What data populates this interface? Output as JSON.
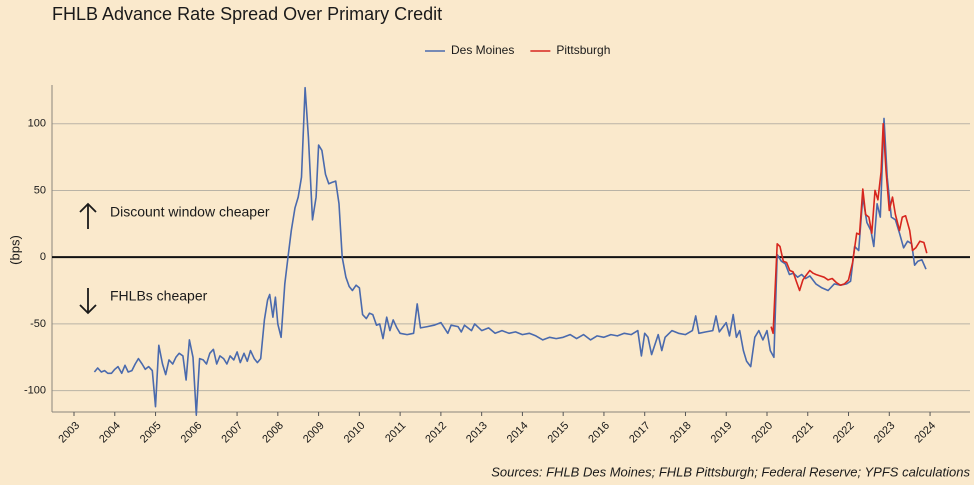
{
  "chart_data": {
    "type": "line",
    "title": "FHLB Advance Rate Spread Over Primary Credit",
    "y_label": "(bps)",
    "annotations": [
      "Discount window cheaper",
      "FHLBs cheaper"
    ],
    "source": "Sources: FHLB Des Moines; FHLB Pittsburgh; Federal Reserve; YPFS calculations",
    "xlim": [
      2002.46,
      2024.98
    ],
    "xticks": [
      2003,
      2004,
      2005,
      2006,
      2007,
      2008,
      2009,
      2010,
      2011,
      2012,
      2013,
      2014,
      2015,
      2016,
      2017,
      2018,
      2019,
      2020,
      2021,
      2022,
      2023,
      2024
    ],
    "ylim": [
      -116,
      129
    ],
    "yticks": [
      -100,
      -50,
      0,
      50,
      100
    ],
    "grid": true,
    "legend": "top",
    "series": [
      {
        "name": "Des Moines",
        "color": "#4a6aad",
        "x": [
          2003.5,
          2003.58,
          2003.67,
          2003.75,
          2003.83,
          2003.92,
          2004.0,
          2004.08,
          2004.17,
          2004.25,
          2004.33,
          2004.42,
          2004.5,
          2004.58,
          2004.67,
          2004.75,
          2004.83,
          2004.92,
          2005.0,
          2005.08,
          2005.17,
          2005.25,
          2005.33,
          2005.42,
          2005.5,
          2005.58,
          2005.67,
          2005.75,
          2005.83,
          2005.92,
          2006.0,
          2006.08,
          2006.17,
          2006.25,
          2006.33,
          2006.42,
          2006.5,
          2006.58,
          2006.67,
          2006.75,
          2006.83,
          2006.92,
          2007.0,
          2007.08,
          2007.17,
          2007.25,
          2007.33,
          2007.42,
          2007.5,
          2007.58,
          2007.67,
          2007.75,
          2007.8,
          2007.88,
          2007.94,
          2008.0,
          2008.08,
          2008.17,
          2008.25,
          2008.33,
          2008.42,
          2008.5,
          2008.58,
          2008.67,
          2008.75,
          2008.85,
          2008.94,
          2009.0,
          2009.08,
          2009.17,
          2009.25,
          2009.33,
          2009.42,
          2009.5,
          2009.58,
          2009.67,
          2009.75,
          2009.83,
          2009.92,
          2010.0,
          2010.08,
          2010.17,
          2010.25,
          2010.33,
          2010.42,
          2010.5,
          2010.58,
          2010.67,
          2010.75,
          2010.83,
          2010.92,
          2011.0,
          2011.17,
          2011.33,
          2011.42,
          2011.5,
          2011.67,
          2011.83,
          2012.0,
          2012.17,
          2012.25,
          2012.42,
          2012.5,
          2012.58,
          2012.75,
          2012.83,
          2013.0,
          2013.17,
          2013.33,
          2013.5,
          2013.67,
          2013.83,
          2014.0,
          2014.17,
          2014.33,
          2014.5,
          2014.67,
          2014.83,
          2015.0,
          2015.17,
          2015.33,
          2015.5,
          2015.67,
          2015.83,
          2016.0,
          2016.17,
          2016.33,
          2016.5,
          2016.67,
          2016.83,
          2016.92,
          2017.0,
          2017.08,
          2017.17,
          2017.33,
          2017.42,
          2017.5,
          2017.67,
          2017.83,
          2018.0,
          2018.17,
          2018.25,
          2018.33,
          2018.5,
          2018.67,
          2018.75,
          2018.83,
          2019.0,
          2019.08,
          2019.17,
          2019.25,
          2019.33,
          2019.42,
          2019.5,
          2019.6,
          2019.7,
          2019.8,
          2019.9,
          2020.0,
          2020.08,
          2020.17,
          2020.25,
          2020.35,
          2020.45,
          2020.55,
          2020.65,
          2020.75,
          2020.85,
          2020.95,
          2021.05,
          2021.2,
          2021.35,
          2021.5,
          2021.65,
          2021.8,
          2021.95,
          2022.05,
          2022.15,
          2022.25,
          2022.35,
          2022.45,
          2022.55,
          2022.62,
          2022.7,
          2022.78,
          2022.87,
          2022.95,
          2023.05,
          2023.15,
          2023.25,
          2023.35,
          2023.45,
          2023.55,
          2023.62,
          2023.7,
          2023.8,
          2023.9
        ],
        "values": [
          -86,
          -83,
          -86,
          -85,
          -87,
          -87,
          -84,
          -82,
          -87,
          -81,
          -86,
          -85,
          -80,
          -76,
          -80,
          -84,
          -82,
          -85,
          -112,
          -66,
          -80,
          -88,
          -77,
          -80,
          -75,
          -72,
          -74,
          -92,
          -62,
          -75,
          -118,
          -76,
          -77,
          -80,
          -72,
          -69,
          -80,
          -74,
          -76,
          -80,
          -74,
          -77,
          -71,
          -79,
          -72,
          -78,
          -70,
          -76,
          -79,
          -76,
          -47,
          -32,
          -28,
          -45,
          -30,
          -50,
          -60,
          -20,
          0,
          20,
          37,
          45,
          60,
          127,
          90,
          28,
          45,
          84,
          80,
          62,
          55,
          56,
          57,
          40,
          0,
          -15,
          -22,
          -25,
          -21,
          -23,
          -43,
          -46,
          -42,
          -43,
          -51,
          -50,
          -61,
          -45,
          -55,
          -47,
          -53,
          -57,
          -58,
          -57,
          -35,
          -53,
          -52,
          -51,
          -49,
          -57,
          -51,
          -52,
          -56,
          -51,
          -55,
          -50,
          -55,
          -53,
          -57,
          -55,
          -57,
          -56,
          -58,
          -57,
          -59,
          -62,
          -60,
          -61,
          -60,
          -58,
          -61,
          -58,
          -62,
          -59,
          -60,
          -58,
          -59,
          -57,
          -58,
          -55,
          -74,
          -57,
          -60,
          -73,
          -58,
          -70,
          -60,
          -55,
          -57,
          -58,
          -55,
          -44,
          -57,
          -56,
          -55,
          -44,
          -56,
          -49,
          -59,
          -43,
          -60,
          -55,
          -70,
          -78,
          -82,
          -60,
          -55,
          -62,
          -55,
          -70,
          -75,
          2,
          -3,
          -5,
          -13,
          -12,
          -15,
          -13,
          -16,
          -14,
          -20,
          -23,
          -25,
          -20,
          -21,
          -20,
          -18,
          8,
          5,
          45,
          26,
          20,
          8,
          40,
          30,
          104,
          60,
          30,
          28,
          18,
          7,
          12,
          10,
          -6,
          -3,
          -2,
          -9
        ]
      },
      {
        "name": "Pittsburgh",
        "color": "#d7261e",
        "x": [
          2020.1,
          2020.15,
          2020.25,
          2020.32,
          2020.4,
          2020.48,
          2020.56,
          2020.64,
          2020.72,
          2020.8,
          2020.88,
          2020.95,
          2021.05,
          2021.13,
          2021.2,
          2021.3,
          2021.4,
          2021.5,
          2021.6,
          2021.7,
          2021.8,
          2021.9,
          2022.0,
          2022.1,
          2022.2,
          2022.27,
          2022.35,
          2022.42,
          2022.5,
          2022.57,
          2022.65,
          2022.72,
          2022.8,
          2022.85,
          2022.92,
          2023.0,
          2023.08,
          2023.15,
          2023.25,
          2023.32,
          2023.4,
          2023.5,
          2023.57,
          2023.65,
          2023.75,
          2023.85,
          2023.92
        ],
        "values": [
          -52,
          -57,
          10,
          8,
          -3,
          -4,
          -10,
          -11,
          -18,
          -25,
          -17,
          -14,
          -10,
          -12,
          -13,
          -14,
          -15,
          -17,
          -16,
          -19,
          -21,
          -20,
          -17,
          -4,
          18,
          17,
          51,
          32,
          30,
          18,
          50,
          43,
          64,
          100,
          65,
          35,
          45,
          32,
          20,
          30,
          31,
          20,
          5,
          7,
          12,
          11,
          3
        ]
      }
    ]
  }
}
